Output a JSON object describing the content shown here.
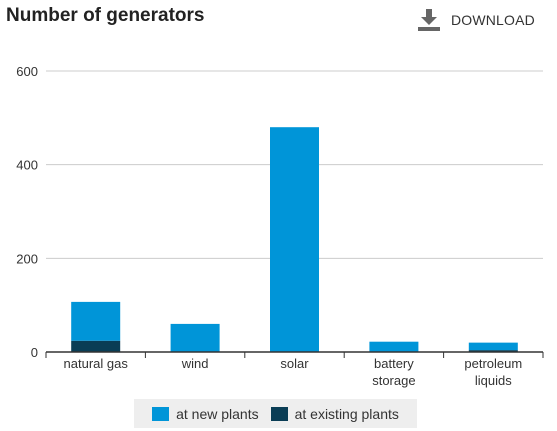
{
  "header": {
    "title": "Number of generators",
    "download_label": "DOWNLOAD",
    "download_icon": "download-icon"
  },
  "colors": {
    "new": "#0095d8",
    "existing": "#0a3d55",
    "grid": "#cccccc",
    "axis": "#333333"
  },
  "chart_data": {
    "type": "bar",
    "stacked": true,
    "title": "Number of generators",
    "categories": [
      [
        "natural gas"
      ],
      [
        "wind"
      ],
      [
        "solar"
      ],
      [
        "battery",
        "storage"
      ],
      [
        "petroleum",
        "liquids"
      ]
    ],
    "series": [
      {
        "name": "at existing plants",
        "key": "existing",
        "values": [
          24,
          1,
          1,
          1,
          4
        ]
      },
      {
        "name": "at new plants",
        "key": "new",
        "values": [
          83,
          59,
          479,
          21,
          16
        ]
      }
    ],
    "ylim": [
      0,
      600
    ],
    "yticks": [
      0,
      200,
      400,
      600
    ],
    "grid": true,
    "legend_position": "bottom"
  },
  "legend": [
    {
      "label": "at new plants",
      "key": "new"
    },
    {
      "label": "at existing plants",
      "key": "existing"
    }
  ]
}
